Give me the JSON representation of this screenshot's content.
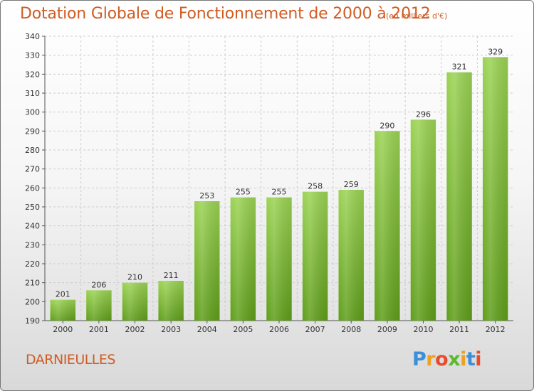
{
  "header": {
    "title": "Dotation Globale de Fonctionnement de 2000 à 2012",
    "unit": "(en milliers d'€)"
  },
  "footer": {
    "commune": "DARNIEULLES",
    "logo_letters": [
      "P",
      "r",
      "o",
      "x",
      "i",
      "t",
      "i"
    ],
    "logo_colors": [
      "#3b8fd8",
      "#f0a020",
      "#e84c2c",
      "#5cb82e",
      "#f0a020",
      "#3b8fd8",
      "#e84c2c"
    ]
  },
  "colors": {
    "title": "#d05c24",
    "bar_top": "#9bd354",
    "bar_bottom": "#5f9e1a",
    "grid": "#cccccc"
  },
  "chart_data": {
    "type": "bar",
    "title": "Dotation Globale de Fonctionnement de 2000 à 2012",
    "ylabel": "(en milliers d'€)",
    "categories": [
      "2000",
      "2001",
      "2002",
      "2003",
      "2004",
      "2005",
      "2006",
      "2007",
      "2008",
      "2009",
      "2010",
      "2011",
      "2012"
    ],
    "values": [
      201,
      206,
      210,
      211,
      253,
      255,
      255,
      258,
      259,
      290,
      296,
      321,
      329
    ],
    "ylim": [
      190,
      340
    ],
    "yticks": [
      190,
      200,
      210,
      220,
      230,
      240,
      250,
      260,
      270,
      280,
      290,
      300,
      310,
      320,
      330,
      340
    ],
    "grid": true
  }
}
